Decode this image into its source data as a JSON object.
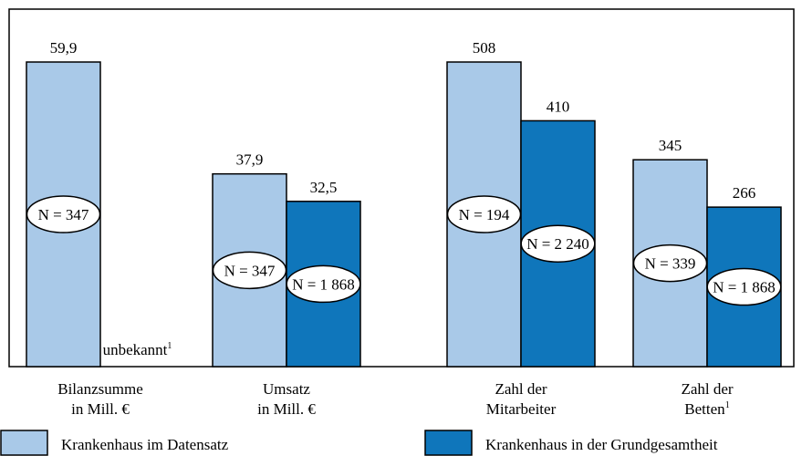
{
  "legend": [
    {
      "name": "Krankenhaus im Datensatz",
      "color": "#a9c9e8"
    },
    {
      "name": "Krankenhaus in der Grundgesamtheit",
      "color": "#0f76bb"
    }
  ],
  "chart_data": [
    {
      "type": "bar",
      "categories": [
        [
          "Bilanzsumme",
          "in Mill. €"
        ],
        [
          "Umsatz",
          "in Mill. €"
        ]
      ],
      "category_footnotes": [
        null,
        null
      ],
      "series": [
        {
          "values": [
            59.9,
            37.9
          ],
          "value_labels": [
            "59,9",
            "37,9"
          ],
          "n_labels": [
            "N = 347",
            "N = 347"
          ]
        },
        {
          "values": [
            null,
            32.5
          ],
          "value_labels": [
            null,
            "32,5"
          ],
          "n_labels": [
            null,
            "N = 1 868"
          ]
        }
      ],
      "annotations": [
        {
          "text": "unbekannt",
          "footnote": "1"
        }
      ]
    },
    {
      "type": "bar",
      "categories": [
        [
          "Zahl der",
          "Mitarbeiter"
        ],
        [
          "Zahl der",
          "Betten"
        ]
      ],
      "category_footnotes": [
        null,
        "1"
      ],
      "series": [
        {
          "values": [
            508,
            345
          ],
          "n_labels": [
            "N = 194",
            "N = 339"
          ]
        },
        {
          "values": [
            410,
            266
          ],
          "n_labels": [
            "N = 2 240",
            "N = 1 868"
          ]
        }
      ]
    }
  ]
}
